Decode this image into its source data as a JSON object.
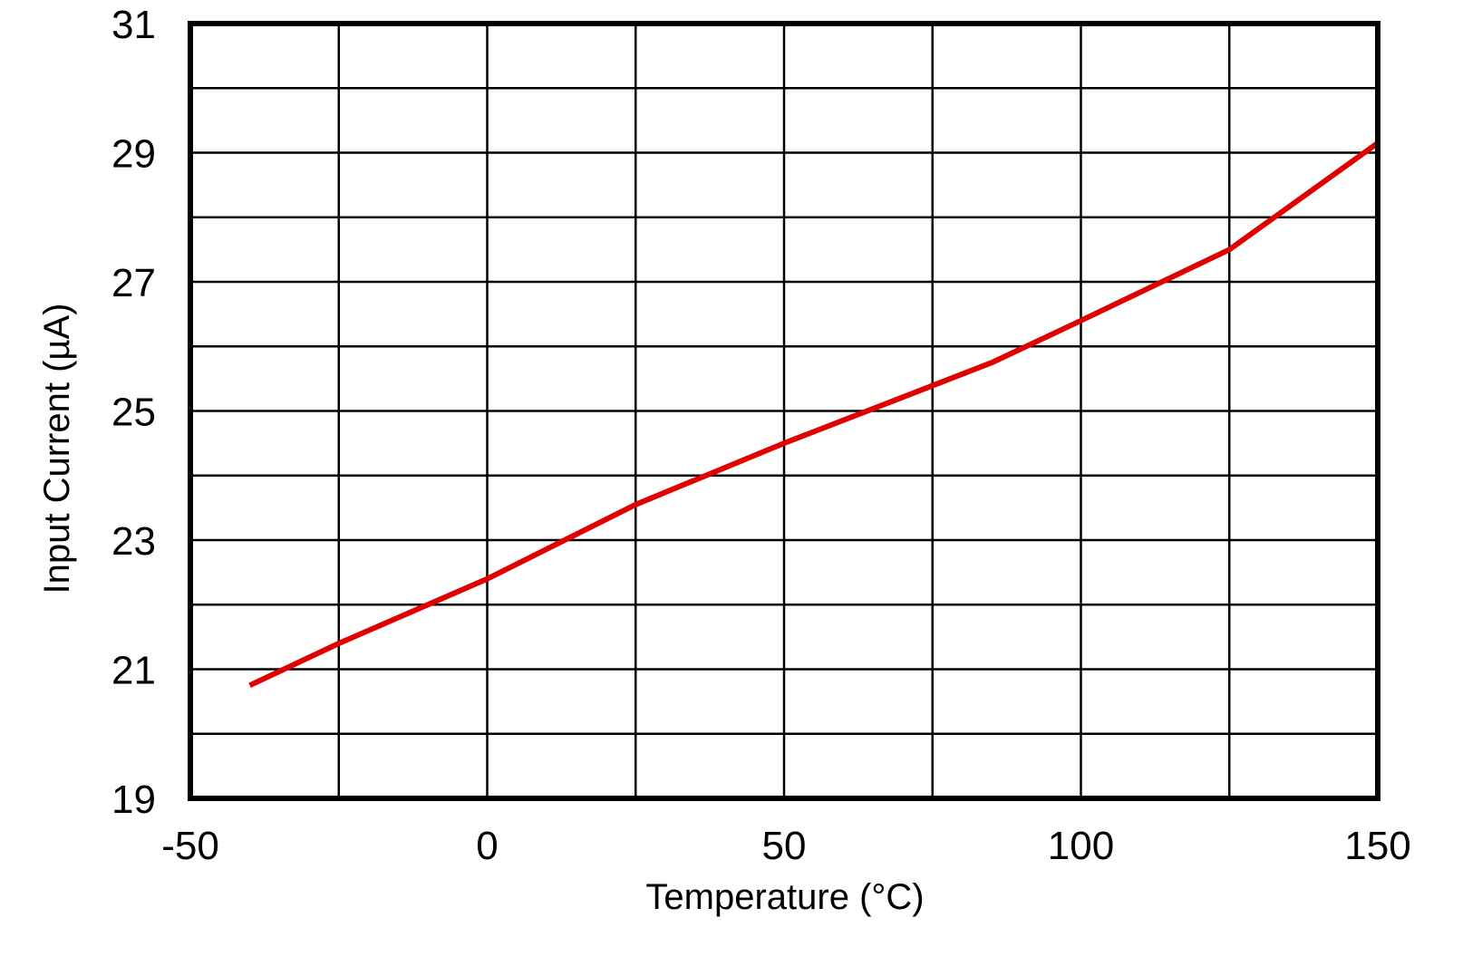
{
  "chart_data": {
    "type": "line",
    "title": "",
    "xlabel": "Temperature (°C)",
    "ylabel": "Input Current (µA)",
    "xlim": [
      -50,
      150
    ],
    "ylim": [
      19,
      31
    ],
    "xticks": [
      -50,
      0,
      50,
      100,
      150
    ],
    "yticks": [
      19,
      21,
      23,
      25,
      27,
      29,
      31
    ],
    "xtick_labels": [
      "-50",
      "0",
      "50",
      "100",
      "150"
    ],
    "ytick_labels": [
      "19",
      "21",
      "23",
      "25",
      "27",
      "29",
      "31"
    ],
    "x_grid_step": 25,
    "y_grid_step": 1,
    "grid": true,
    "legend": "none",
    "series": [
      {
        "color": "#e00000",
        "x": [
          -40,
          -25,
          0,
          25,
          50,
          85,
          100,
          125,
          150
        ],
        "y": [
          20.75,
          21.4,
          22.4,
          23.55,
          24.5,
          25.75,
          26.4,
          27.5,
          29.15
        ]
      }
    ]
  }
}
